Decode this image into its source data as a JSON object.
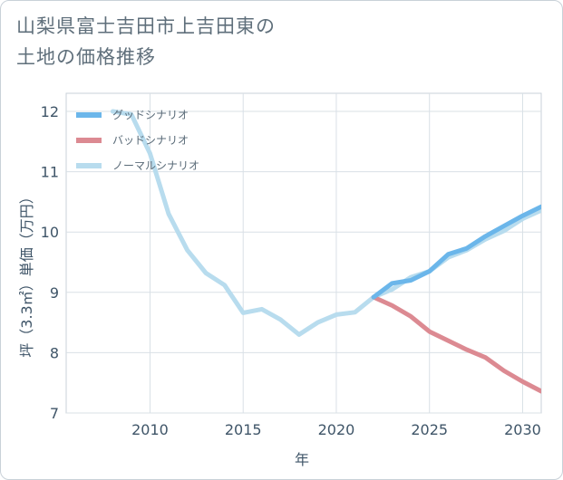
{
  "title": {
    "line1": "山梨県富士吉田市上吉田東の",
    "line2": "土地の価格推移"
  },
  "chart_data": {
    "type": "line",
    "xlabel": "年",
    "ylabel": "坪（3.3㎡）単価（万円）",
    "xlim": [
      2005.5,
      2031
    ],
    "ylim": [
      7,
      12.3
    ],
    "xticks": [
      2010,
      2015,
      2020,
      2025,
      2030
    ],
    "yticks": [
      7,
      8,
      9,
      10,
      11,
      12
    ],
    "grid": true,
    "legend_position": "top-left",
    "series": [
      {
        "name": "グッドシナリオ",
        "color": "#6bb6ea",
        "x": [
          2022,
          2023,
          2024,
          2025,
          2026,
          2027,
          2028,
          2029,
          2030,
          2031
        ],
        "y": [
          8.92,
          9.15,
          9.2,
          9.35,
          9.63,
          9.73,
          9.93,
          10.1,
          10.27,
          10.42
        ]
      },
      {
        "name": "バッドシナリオ",
        "color": "#dc8a92",
        "x": [
          2022,
          2023,
          2024,
          2025,
          2026,
          2027,
          2028,
          2029,
          2030,
          2031
        ],
        "y": [
          8.92,
          8.78,
          8.6,
          8.35,
          8.2,
          8.05,
          7.92,
          7.7,
          7.52,
          7.36
        ]
      },
      {
        "name": "ノーマルシナリオ",
        "color": "#b8dcee",
        "x": [
          2008,
          2009,
          2010,
          2011,
          2012,
          2013,
          2014,
          2015,
          2016,
          2017,
          2018,
          2019,
          2020,
          2021,
          2022,
          2023,
          2024,
          2025,
          2026,
          2027,
          2028,
          2029,
          2030,
          2031
        ],
        "y": [
          12.0,
          11.95,
          11.3,
          10.3,
          9.7,
          9.32,
          9.12,
          8.66,
          8.72,
          8.55,
          8.3,
          8.5,
          8.63,
          8.67,
          8.92,
          9.05,
          9.25,
          9.35,
          9.58,
          9.7,
          9.88,
          10.02,
          10.22,
          10.36
        ]
      }
    ]
  }
}
